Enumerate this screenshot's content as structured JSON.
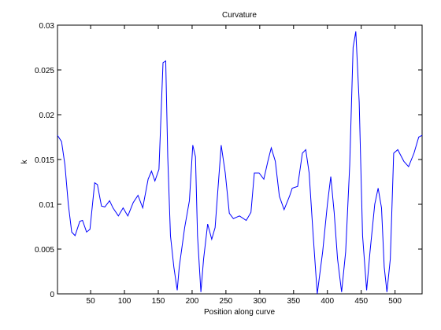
{
  "chart_data": {
    "type": "line",
    "title": "Curvature",
    "x_label": "Position along curve",
    "y_label": "k",
    "x": [
      1,
      7,
      12,
      17,
      22,
      27,
      34,
      38,
      44,
      49,
      56,
      60,
      66,
      71,
      78,
      83,
      91,
      98,
      105,
      113,
      120,
      127,
      135,
      140,
      145,
      151,
      157,
      161,
      164,
      168,
      173,
      178,
      181,
      189,
      196,
      201,
      205,
      208,
      213,
      217,
      223,
      229,
      234,
      243,
      249,
      255,
      261,
      270,
      280,
      287,
      292,
      299,
      306,
      312,
      317,
      323,
      329,
      336,
      344,
      348,
      356,
      363,
      368,
      373,
      379,
      385,
      393,
      400,
      405,
      410,
      415,
      421,
      427,
      433,
      438,
      442,
      447,
      452,
      458,
      463,
      470,
      475,
      480,
      484,
      488,
      493,
      498,
      504,
      513,
      520,
      528,
      535,
      540
    ],
    "series": [
      {
        "color": "#0000ff",
        "values": [
          0.0177,
          0.017,
          0.0144,
          0.01,
          0.0069,
          0.0065,
          0.0081,
          0.0082,
          0.0069,
          0.0072,
          0.0124,
          0.0122,
          0.0098,
          0.0097,
          0.0104,
          0.0096,
          0.0087,
          0.0096,
          0.0087,
          0.0102,
          0.011,
          0.0096,
          0.0128,
          0.0137,
          0.0126,
          0.0139,
          0.0258,
          0.026,
          0.0153,
          0.0065,
          0.003,
          0.0004,
          0.003,
          0.0074,
          0.0104,
          0.0166,
          0.0153,
          0.0065,
          0.0002,
          0.0039,
          0.0078,
          0.0061,
          0.0074,
          0.0166,
          0.0135,
          0.009,
          0.0084,
          0.0087,
          0.0082,
          0.0091,
          0.0135,
          0.0135,
          0.0128,
          0.0148,
          0.0163,
          0.0148,
          0.0109,
          0.0094,
          0.0109,
          0.0118,
          0.012,
          0.0157,
          0.0161,
          0.0135,
          0.0065,
          0,
          0.0047,
          0.01,
          0.0131,
          0.0091,
          0.0039,
          0.0002,
          0.0047,
          0.0144,
          0.0275,
          0.0293,
          0.0214,
          0.0065,
          0.0004,
          0.0047,
          0.01,
          0.0118,
          0.0096,
          0.003,
          0.0002,
          0.0039,
          0.0157,
          0.0161,
          0.0148,
          0.0142,
          0.0157,
          0.0175,
          0.0177
        ]
      }
    ],
    "xlim": [
      1,
      540
    ],
    "xticks": [
      50,
      100,
      150,
      200,
      250,
      300,
      350,
      400,
      450,
      500
    ],
    "ylim": [
      0,
      0.03
    ],
    "yticks": [
      0,
      0.005,
      0.01,
      0.015,
      0.02,
      0.025,
      0.03
    ]
  }
}
